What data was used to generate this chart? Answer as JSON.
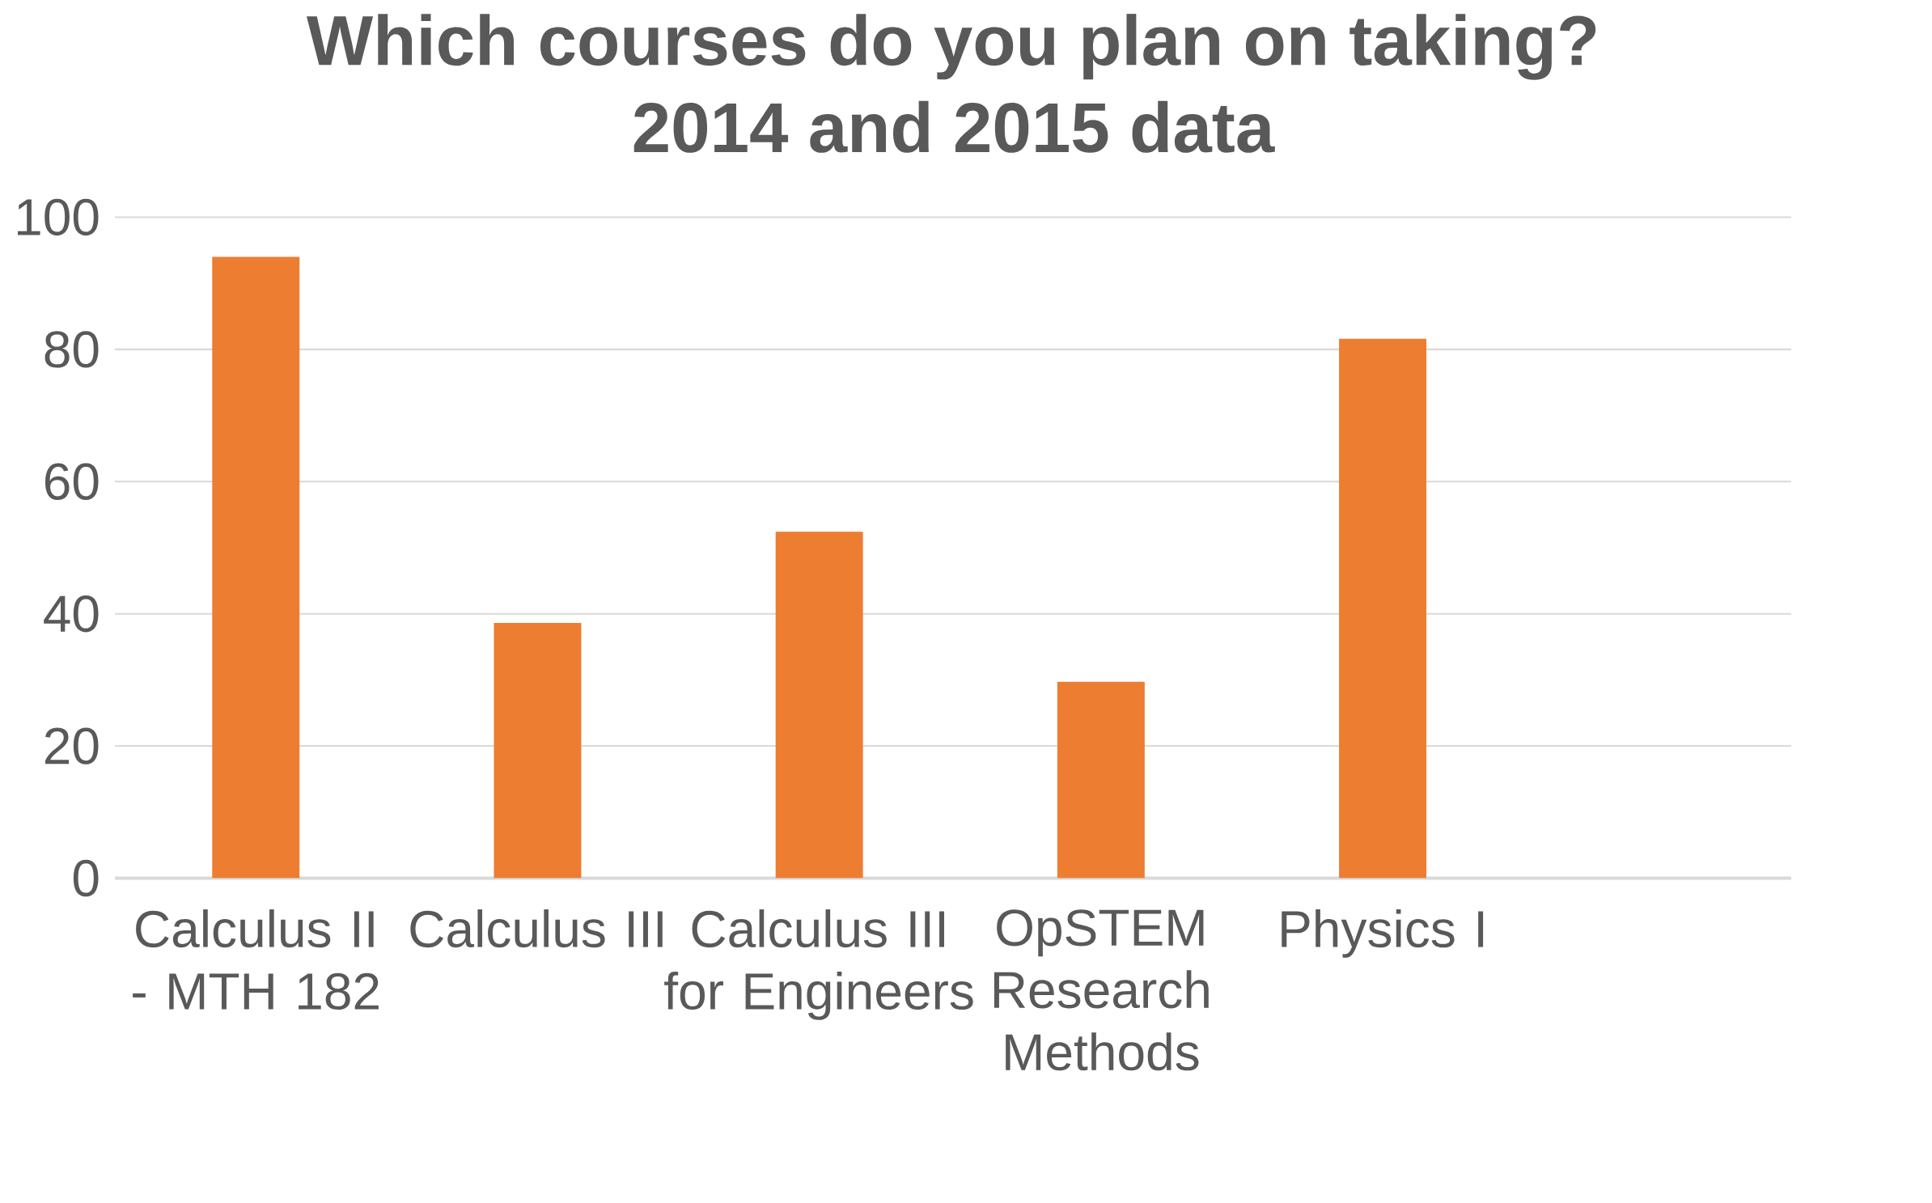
{
  "chart_data": {
    "type": "bar",
    "title": "Which courses do you plan on taking?\n2014 and 2015 data",
    "categories": [
      "Calculus II - MTH 182",
      "Calculus III",
      "Calculus III for Engineers",
      "OpSTEM Research Methods",
      "Physics I"
    ],
    "values": [
      94.0,
      38.6,
      52.4,
      29.7,
      81.6
    ],
    "color": "#ed7d31",
    "ylim": [
      0,
      100
    ],
    "yticks": [
      0,
      20,
      40,
      60,
      80,
      100
    ],
    "grid": "y"
  }
}
